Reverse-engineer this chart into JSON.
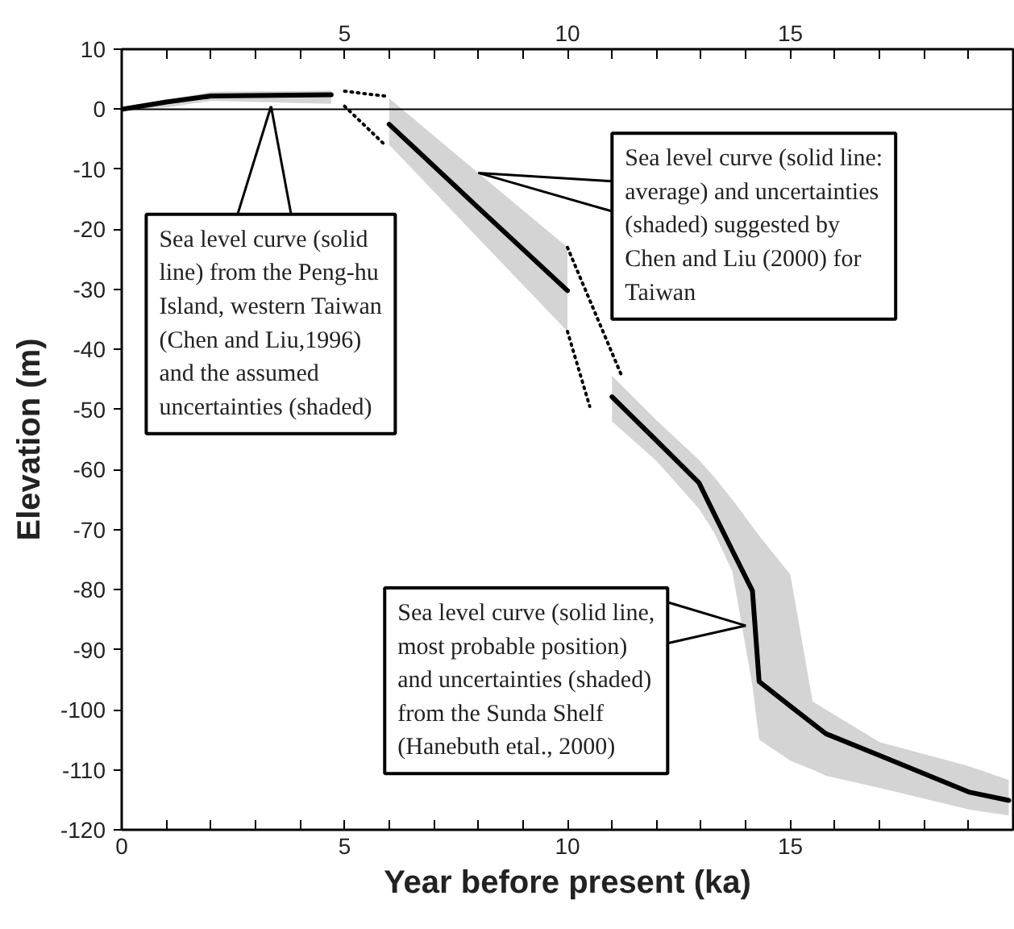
{
  "chart_data": {
    "type": "line",
    "xlabel": "Year before present (ka)",
    "ylabel": "Elevation (m)",
    "xlim": [
      0,
      20
    ],
    "ylim": [
      -120,
      10
    ],
    "xticks": [
      0,
      {
        "value": 1,
        "label": null
      },
      {
        "value": 2,
        "label": null
      },
      {
        "value": 3,
        "label": null
      },
      {
        "value": 4,
        "label": null
      },
      5,
      {
        "value": 6,
        "label": null
      },
      {
        "value": 7,
        "label": null
      },
      {
        "value": 8,
        "label": null
      },
      {
        "value": 9,
        "label": null
      },
      10,
      {
        "value": 11,
        "label": null
      },
      {
        "value": 12,
        "label": null
      },
      {
        "value": 13,
        "label": null
      },
      {
        "value": 14,
        "label": null
      },
      15,
      {
        "value": 16,
        "label": null
      },
      {
        "value": 17,
        "label": null
      },
      {
        "value": 18,
        "label": null
      },
      {
        "value": 19,
        "label": null
      }
    ],
    "x2lim": [
      0,
      20
    ],
    "x2ticks": [
      {
        "value": 0,
        "label": null
      },
      {
        "value": 1,
        "label": null
      },
      {
        "value": 2,
        "label": null
      },
      {
        "value": 3,
        "label": null
      },
      {
        "value": 4,
        "label": null
      },
      5,
      {
        "value": 6,
        "label": null
      },
      {
        "value": 7,
        "label": null
      },
      {
        "value": 8,
        "label": null
      },
      {
        "value": 9,
        "label": null
      },
      10,
      {
        "value": 11,
        "label": null
      },
      {
        "value": 12,
        "label": null
      },
      {
        "value": 13,
        "label": null
      },
      {
        "value": 14,
        "label": null
      },
      15,
      {
        "value": 16,
        "label": null
      },
      {
        "value": 17,
        "label": null
      },
      {
        "value": 18,
        "label": null
      },
      {
        "value": 19,
        "label": null
      }
    ],
    "yticks": [
      -120,
      -110,
      -100,
      -90,
      -80,
      -70,
      -60,
      -50,
      -40,
      -30,
      -20,
      -10,
      0,
      10
    ],
    "grid": false,
    "marker": "none",
    "series": [
      {
        "color": "#000000",
        "x": [
          0,
          1,
          2,
          4.7
        ],
        "values": [
          0,
          1.2,
          2.2,
          2.4
        ],
        "lower": [
          0,
          0.3,
          1.4,
          0.9
        ],
        "upper": [
          0,
          1.5,
          2.9,
          3.1
        ]
      },
      {
        "color": "#000000",
        "x": [
          6,
          8,
          10
        ],
        "values": [
          -2.5,
          -16.4,
          -30.2
        ],
        "lower": [
          -5.9,
          -21.5,
          -37
        ],
        "upper": [
          1.8,
          -10.6,
          -23
        ]
      },
      {
        "color": "#000000",
        "x": [
          11,
          12,
          12.95,
          13.3,
          13.7,
          14.15,
          14.3,
          15,
          15.5,
          15.8,
          17,
          19,
          19.9
        ],
        "values": [
          -47.9,
          -55.2,
          -62.2,
          -67.5,
          -73.5,
          -80.2,
          -95.3,
          -99.4,
          -102.3,
          -104,
          -107.6,
          -113.7,
          -115.1
        ],
        "lower": [
          -52,
          -58.6,
          -66.5,
          -70.6,
          -77,
          -96,
          -105,
          -108.5,
          -110,
          -111,
          -113,
          -116.6,
          -117.6
        ],
        "upper": [
          -44.4,
          -51.8,
          -58.4,
          -61.3,
          -65,
          -69.5,
          -71,
          -77.5,
          -98.6,
          -100,
          -105.4,
          -109.4,
          -111.7
        ]
      },
      {
        "color": "#000000",
        "line_style": "dotted",
        "x": [
          5,
          5.9
        ],
        "values": [
          3.0,
          2.2
        ]
      },
      {
        "color": "#000000",
        "line_style": "dotted",
        "x": [
          5,
          5.9
        ],
        "values": [
          0.5,
          -5.9
        ]
      },
      {
        "color": "#000000",
        "line_style": "dotted",
        "x": [
          10,
          11.2
        ],
        "values": [
          -23,
          -44.1
        ]
      },
      {
        "color": "#000000",
        "line_style": "dotted",
        "x": [
          10,
          10.5
        ],
        "values": [
          -37,
          -49.5
        ]
      }
    ],
    "ref_lines": [
      {
        "axis": "y",
        "value": 0,
        "color": "#000000"
      }
    ],
    "annotations": [
      {
        "text": "Sea level curve (solid\nline) from the Peng-hu\nIsland, western Taiwan\n(Chen and Liu,1996)\nand the assumed\nuncertainties (shaded)",
        "x": 3.35,
        "y": 0.5
      },
      {
        "text": "Sea level curve (solid line:\naverage) and uncertainties\n(shaded) suggested by\nChen and Liu (2000) for\nTaiwan",
        "x": 8,
        "y": -10.6
      },
      {
        "text": "Sea level curve (solid line,\nmost probable position)\nand uncertainties (shaded)\nfrom the Sunda Shelf\n(Hanebuth etal., 2000)",
        "x": 14.0,
        "y": -86
      }
    ]
  }
}
